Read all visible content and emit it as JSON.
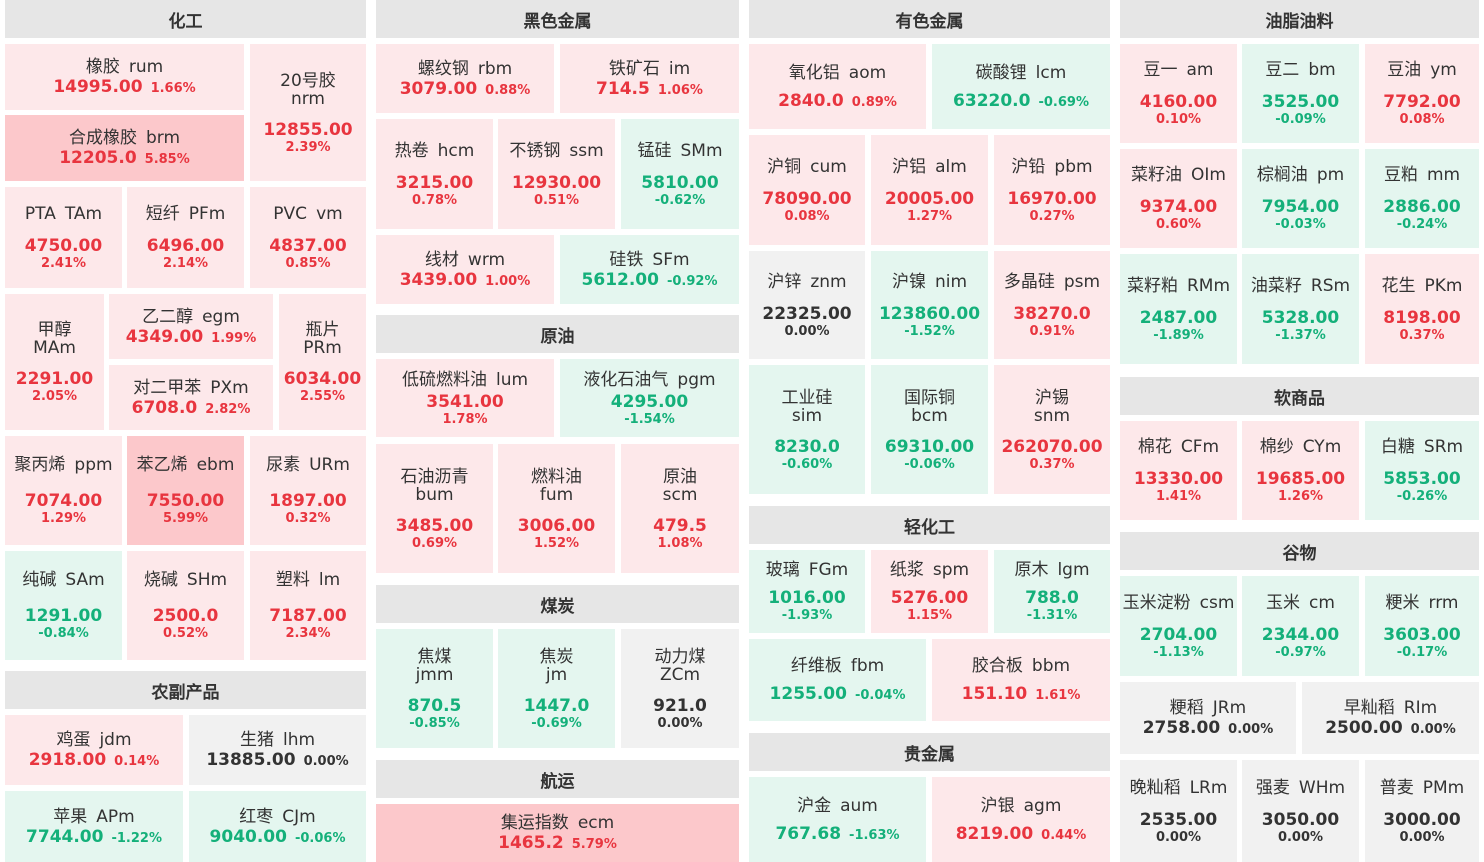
{
  "headers": {
    "chem": "化工",
    "ferrous": "黑色金属",
    "nonferrous": "有色金属",
    "oils": "油脂油料",
    "crude": "原油",
    "light": "轻化工",
    "soft": "软商品",
    "grain": "谷物",
    "agri": "农副产品",
    "coal": "煤炭",
    "ship": "航运",
    "precious": "贵金属"
  },
  "colors": {
    "up": "#e8353f",
    "down": "#14b07a",
    "flat": "#333333",
    "up_bg": "#fde8ea",
    "down_bg": "#e4f6ef",
    "flat_bg": "#f1f1f1",
    "strong_up_bg": "#fcc8cb"
  },
  "tiles": {
    "rum": {
      "n": "橡胶",
      "c": "rum",
      "p": "14995.00",
      "ch": "1.66%"
    },
    "nrm": {
      "n": "20号胶",
      "c": "nrm",
      "p": "12855.00",
      "ch": "2.39%"
    },
    "brm": {
      "n": "合成橡胶",
      "c": "brm",
      "p": "12205.0",
      "ch": "5.85%"
    },
    "TAm": {
      "n": "PTA",
      "c": "TAm",
      "p": "4750.00",
      "ch": "2.41%"
    },
    "PFm": {
      "n": "短纤",
      "c": "PFm",
      "p": "6496.00",
      "ch": "2.14%"
    },
    "vm": {
      "n": "PVC",
      "c": "vm",
      "p": "4837.00",
      "ch": "0.85%"
    },
    "MAm": {
      "n": "甲醇",
      "c": "MAm",
      "p": "2291.00",
      "ch": "2.05%"
    },
    "egm": {
      "n": "乙二醇",
      "c": "egm",
      "p": "4349.00",
      "ch": "1.99%"
    },
    "PRm": {
      "n": "瓶片",
      "c": "PRm",
      "p": "6034.00",
      "ch": "2.55%"
    },
    "PXm": {
      "n": "对二甲苯",
      "c": "PXm",
      "p": "6708.0",
      "ch": "2.82%"
    },
    "ppm": {
      "n": "聚丙烯",
      "c": "ppm",
      "p": "7074.00",
      "ch": "1.29%"
    },
    "ebm": {
      "n": "苯乙烯",
      "c": "ebm",
      "p": "7550.00",
      "ch": "5.99%"
    },
    "URm": {
      "n": "尿素",
      "c": "URm",
      "p": "1897.00",
      "ch": "0.32%"
    },
    "SAm": {
      "n": "纯碱",
      "c": "SAm",
      "p": "1291.00",
      "ch": "-0.84%"
    },
    "SHm": {
      "n": "烧碱",
      "c": "SHm",
      "p": "2500.0",
      "ch": "0.52%"
    },
    "lm": {
      "n": "塑料",
      "c": "lm",
      "p": "7187.00",
      "ch": "2.34%"
    },
    "jdm": {
      "n": "鸡蛋",
      "c": "jdm",
      "p": "2918.00",
      "ch": "0.14%"
    },
    "lhm": {
      "n": "生猪",
      "c": "lhm",
      "p": "13885.00",
      "ch": "0.00%"
    },
    "APm": {
      "n": "苹果",
      "c": "APm",
      "p": "7744.00",
      "ch": "-1.22%"
    },
    "CJm": {
      "n": "红枣",
      "c": "CJm",
      "p": "9040.00",
      "ch": "-0.06%"
    },
    "rbm": {
      "n": "螺纹钢",
      "c": "rbm",
      "p": "3079.00",
      "ch": "0.88%"
    },
    "im": {
      "n": "铁矿石",
      "c": "im",
      "p": "714.5",
      "ch": "1.06%"
    },
    "hcm": {
      "n": "热卷",
      "c": "hcm",
      "p": "3215.00",
      "ch": "0.78%"
    },
    "ssm": {
      "n": "不锈钢",
      "c": "ssm",
      "p": "12930.00",
      "ch": "0.51%"
    },
    "SMm": {
      "n": "锰硅",
      "c": "SMm",
      "p": "5810.00",
      "ch": "-0.62%"
    },
    "wrm": {
      "n": "线材",
      "c": "wrm",
      "p": "3439.00",
      "ch": "1.00%"
    },
    "SFm": {
      "n": "硅铁",
      "c": "SFm",
      "p": "5612.00",
      "ch": "-0.92%"
    },
    "lum": {
      "n": "低硫燃料油",
      "c": "lum",
      "p": "3541.00",
      "ch": "1.78%"
    },
    "pgm": {
      "n": "液化石油气",
      "c": "pgm",
      "p": "4295.00",
      "ch": "-1.54%"
    },
    "bum": {
      "n": "石油沥青",
      "c": "bum",
      "p": "3485.00",
      "ch": "0.69%"
    },
    "fum": {
      "n": "燃料油",
      "c": "fum",
      "p": "3006.00",
      "ch": "1.52%"
    },
    "scm": {
      "n": "原油",
      "c": "scm",
      "p": "479.5",
      "ch": "1.08%"
    },
    "jmm": {
      "n": "焦煤",
      "c": "jmm",
      "p": "870.5",
      "ch": "-0.85%"
    },
    "jm": {
      "n": "焦炭",
      "c": "jm",
      "p": "1447.0",
      "ch": "-0.69%"
    },
    "ZCm": {
      "n": "动力煤",
      "c": "ZCm",
      "p": "921.0",
      "ch": "0.00%"
    },
    "ecm": {
      "n": "集运指数",
      "c": "ecm",
      "p": "1465.2",
      "ch": "5.79%"
    },
    "aom": {
      "n": "氧化铝",
      "c": "aom",
      "p": "2840.0",
      "ch": "0.89%"
    },
    "lcm": {
      "n": "碳酸锂",
      "c": "lcm",
      "p": "63220.0",
      "ch": "-0.69%"
    },
    "cum": {
      "n": "沪铜",
      "c": "cum",
      "p": "78090.00",
      "ch": "0.08%"
    },
    "alm": {
      "n": "沪铝",
      "c": "alm",
      "p": "20005.00",
      "ch": "1.27%"
    },
    "pbm": {
      "n": "沪铅",
      "c": "pbm",
      "p": "16970.00",
      "ch": "0.27%"
    },
    "znm": {
      "n": "沪锌",
      "c": "znm",
      "p": "22325.00",
      "ch": "0.00%"
    },
    "nim": {
      "n": "沪镍",
      "c": "nim",
      "p": "123860.00",
      "ch": "-1.52%"
    },
    "psm": {
      "n": "多晶硅",
      "c": "psm",
      "p": "38270.0",
      "ch": "0.91%"
    },
    "sim": {
      "n": "工业硅",
      "c": "sim",
      "p": "8230.0",
      "ch": "-0.60%"
    },
    "bcm": {
      "n": "国际铜",
      "c": "bcm",
      "p": "69310.00",
      "ch": "-0.06%"
    },
    "snm": {
      "n": "沪锡",
      "c": "snm",
      "p": "262070.00",
      "ch": "0.37%"
    },
    "FGm": {
      "n": "玻璃",
      "c": "FGm",
      "p": "1016.00",
      "ch": "-1.93%"
    },
    "spm": {
      "n": "纸浆",
      "c": "spm",
      "p": "5276.00",
      "ch": "1.15%"
    },
    "lgm": {
      "n": "原木",
      "c": "lgm",
      "p": "788.0",
      "ch": "-1.31%"
    },
    "fbm": {
      "n": "纤维板",
      "c": "fbm",
      "p": "1255.00",
      "ch": "-0.04%"
    },
    "bbm": {
      "n": "胶合板",
      "c": "bbm",
      "p": "151.10",
      "ch": "1.61%"
    },
    "aum": {
      "n": "沪金",
      "c": "aum",
      "p": "767.68",
      "ch": "-1.63%"
    },
    "agm": {
      "n": "沪银",
      "c": "agm",
      "p": "8219.00",
      "ch": "0.44%"
    },
    "am": {
      "n": "豆一",
      "c": "am",
      "p": "4160.00",
      "ch": "0.10%"
    },
    "bm": {
      "n": "豆二",
      "c": "bm",
      "p": "3525.00",
      "ch": "-0.09%"
    },
    "ym": {
      "n": "豆油",
      "c": "ym",
      "p": "7792.00",
      "ch": "0.08%"
    },
    "OIm": {
      "n": "菜籽油",
      "c": "OIm",
      "p": "9374.00",
      "ch": "0.60%"
    },
    "pm": {
      "n": "棕榈油",
      "c": "pm",
      "p": "7954.00",
      "ch": "-0.03%"
    },
    "mm": {
      "n": "豆粕",
      "c": "mm",
      "p": "2886.00",
      "ch": "-0.24%"
    },
    "RMm": {
      "n": "菜籽粕",
      "c": "RMm",
      "p": "2487.00",
      "ch": "-1.89%"
    },
    "RSm": {
      "n": "油菜籽",
      "c": "RSm",
      "p": "5328.00",
      "ch": "-1.37%"
    },
    "PKm": {
      "n": "花生",
      "c": "PKm",
      "p": "8198.00",
      "ch": "0.37%"
    },
    "CFm": {
      "n": "棉花",
      "c": "CFm",
      "p": "13330.00",
      "ch": "1.41%"
    },
    "CYm": {
      "n": "棉纱",
      "c": "CYm",
      "p": "19685.00",
      "ch": "1.26%"
    },
    "SRm": {
      "n": "白糖",
      "c": "SRm",
      "p": "5853.00",
      "ch": "-0.26%"
    },
    "csm": {
      "n": "玉米淀粉",
      "c": "csm",
      "p": "2704.00",
      "ch": "-1.13%"
    },
    "cm": {
      "n": "玉米",
      "c": "cm",
      "p": "2344.00",
      "ch": "-0.97%"
    },
    "rrm": {
      "n": "粳米",
      "c": "rrm",
      "p": "3603.00",
      "ch": "-0.17%"
    },
    "JRm": {
      "n": "粳稻",
      "c": "JRm",
      "p": "2758.00",
      "ch": "0.00%"
    },
    "RIm": {
      "n": "早籼稻",
      "c": "RIm",
      "p": "2500.00",
      "ch": "0.00%"
    },
    "LRm": {
      "n": "晚籼稻",
      "c": "LRm",
      "p": "2535.00",
      "ch": "0.00%"
    },
    "WHm": {
      "n": "强麦",
      "c": "WHm",
      "p": "3050.00",
      "ch": "0.00%"
    },
    "PMm": {
      "n": "普麦",
      "c": "PMm",
      "p": "3000.00",
      "ch": "0.00%"
    }
  }
}
